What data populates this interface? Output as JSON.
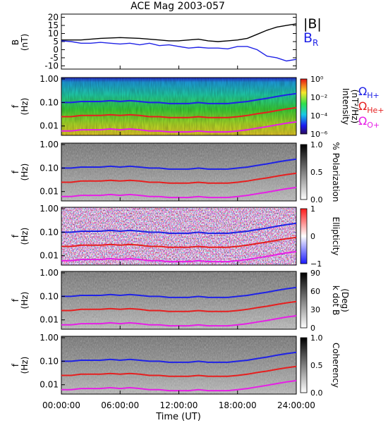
{
  "title": "ACE Mag 2003-057",
  "xlabel": "Time (UT)",
  "x_ticks": [
    "00:00:00",
    "06:00:00",
    "12:00:00",
    "18:00:00",
    "24:00:00"
  ],
  "colors": {
    "B_total": "#000000",
    "B_R": "#1f22e6",
    "H_plus": "#1f22e6",
    "He_plus": "#e61f1f",
    "O_plus": "#e61fe6"
  },
  "legend": {
    "b_total": "|B|",
    "b_r": "B",
    "b_r_sub": "R",
    "omega": "Ω",
    "h_sub": "H+",
    "he_sub": "He+",
    "o_sub": "O+"
  },
  "chart_data": [
    {
      "type": "line",
      "title": "ACE Mag 2003-057",
      "ylabel": "B",
      "yunit": "(nT)",
      "ylim": [
        -12,
        22
      ],
      "y_ticks": [
        "20",
        "15",
        "10",
        "5",
        "0",
        "-5",
        "-10"
      ],
      "xlim": [
        0,
        24
      ],
      "series": [
        {
          "name": "|B|",
          "x": [
            0,
            2,
            4,
            6,
            8,
            9,
            10,
            11,
            12,
            13,
            14,
            15,
            16,
            17,
            18,
            19,
            20,
            21,
            22,
            23,
            24
          ],
          "values": [
            6,
            6,
            7,
            7.5,
            7,
            6.5,
            6,
            5.5,
            5.5,
            6,
            6.5,
            5.5,
            5,
            5.5,
            6,
            7,
            9.5,
            12,
            14,
            15,
            16
          ]
        },
        {
          "name": "B_R",
          "x": [
            0,
            1,
            2,
            3,
            4,
            5,
            6,
            7,
            8,
            9,
            10,
            11,
            12,
            13,
            14,
            15,
            16,
            17,
            18,
            19,
            20,
            21,
            22,
            23,
            24
          ],
          "values": [
            5.5,
            5,
            4,
            4,
            4.5,
            4,
            3.5,
            4,
            3,
            4,
            2.5,
            3,
            2,
            1,
            1.5,
            1,
            1,
            0.5,
            2,
            2,
            0,
            -4,
            -5,
            -7,
            -6
          ]
        }
      ]
    },
    {
      "type": "heatmap",
      "ylabel": "f",
      "yunit": "(Hz)",
      "y_ticks": [
        "1.00",
        "0.10",
        "0.01"
      ],
      "colorbar_label": "Intensity",
      "colorbar_unit": "(nT²/Hz)",
      "colorbar_ticks": [
        "10⁰",
        "10⁻²",
        "10⁻⁴",
        "10⁻⁶"
      ],
      "overlays": [
        "Ω H+",
        "Ω He+",
        "Ω O+"
      ]
    },
    {
      "type": "heatmap",
      "ylabel": "f",
      "yunit": "(Hz)",
      "y_ticks": [
        "1.00",
        "0.10",
        "0.01"
      ],
      "colorbar_label": "% Polarization",
      "colorbar_ticks": [
        "1.0",
        "0.5",
        "0.0"
      ]
    },
    {
      "type": "heatmap",
      "ylabel": "f",
      "yunit": "(Hz)",
      "y_ticks": [
        "1.00",
        "0.10",
        "0.01"
      ],
      "colorbar_label": "Ellipticity",
      "colorbar_ticks": [
        "1",
        "0",
        "−1"
      ]
    },
    {
      "type": "heatmap",
      "ylabel": "f",
      "yunit": "(Hz)",
      "y_ticks": [
        "1.00",
        "0.10",
        "0.01"
      ],
      "colorbar_label": "k dot B",
      "colorbar_unit": "(Deg)",
      "colorbar_ticks": [
        "90",
        "60",
        "30",
        "0"
      ]
    },
    {
      "type": "heatmap",
      "ylabel": "f",
      "yunit": "(Hz)",
      "y_ticks": [
        "1.00",
        "0.10",
        "0.01"
      ],
      "colorbar_label": "Coherency",
      "colorbar_ticks": [
        "1.0",
        "0.5",
        "0.0"
      ]
    }
  ],
  "gyrofrequency_lines": {
    "x": [
      0,
      1,
      2,
      3,
      4,
      5,
      6,
      7,
      8,
      9,
      10,
      11,
      12,
      13,
      14,
      15,
      16,
      17,
      18,
      19,
      20,
      21,
      22,
      23,
      24
    ],
    "H_plus_hz": [
      0.1,
      0.1,
      0.11,
      0.11,
      0.11,
      0.12,
      0.11,
      0.12,
      0.11,
      0.1,
      0.1,
      0.09,
      0.09,
      0.09,
      0.1,
      0.09,
      0.09,
      0.09,
      0.1,
      0.11,
      0.13,
      0.15,
      0.18,
      0.21,
      0.24
    ],
    "He_plus_hz": [
      0.025,
      0.025,
      0.028,
      0.028,
      0.028,
      0.03,
      0.028,
      0.03,
      0.028,
      0.025,
      0.025,
      0.023,
      0.023,
      0.023,
      0.025,
      0.023,
      0.023,
      0.023,
      0.025,
      0.028,
      0.033,
      0.038,
      0.045,
      0.053,
      0.06
    ],
    "O_plus_hz": [
      0.0062,
      0.0062,
      0.0069,
      0.0069,
      0.0069,
      0.0075,
      0.0069,
      0.0075,
      0.0069,
      0.0062,
      0.0062,
      0.0056,
      0.0056,
      0.0056,
      0.0062,
      0.0056,
      0.0056,
      0.0056,
      0.0062,
      0.0069,
      0.0081,
      0.0094,
      0.0112,
      0.0131,
      0.015
    ]
  }
}
